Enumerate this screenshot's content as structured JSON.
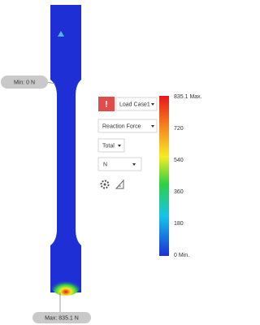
{
  "callouts": {
    "min": "Min: 0 N",
    "max": "Max: 835.1 N"
  },
  "panel": {
    "load_case": "Load Case1",
    "result": "Reaction Force",
    "component": "Total",
    "unit": "N"
  },
  "legend": {
    "labels": [
      "835.1 Max.",
      "720",
      "540",
      "360",
      "180",
      "0 Min."
    ]
  }
}
